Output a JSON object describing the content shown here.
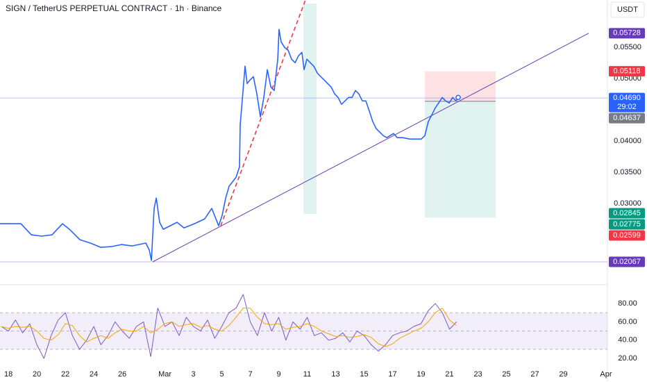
{
  "chart_data": [
    {
      "type": "line",
      "title": "SIGN / TetherUS PERPETUAL CONTRACT · 1h · Binance",
      "currency": "USDT",
      "color": "#2962ff",
      "x": [
        -0.59,
        0.88,
        1.61,
        2.34,
        3.07,
        3.8,
        4.29,
        5.02,
        5.76,
        6.49,
        7.22,
        7.95,
        8.68,
        9.66,
        9.9,
        10.05,
        10.24,
        10.39,
        10.63,
        10.88,
        11.37,
        11.85,
        12.34,
        13.07,
        13.8,
        14.29,
        14.78,
        15.02,
        15.27,
        15.51,
        16.0,
        16.24,
        16.29,
        16.49,
        16.63,
        16.78,
        16.98,
        17.22,
        17.46,
        17.71,
        17.95,
        18.2,
        18.44,
        18.68,
        18.93,
        19.02,
        19.17,
        19.41,
        19.66,
        19.9,
        20.15,
        20.39,
        20.63,
        20.78,
        20.98,
        21.22,
        21.46,
        21.71,
        21.95,
        22.2,
        22.44,
        22.68,
        22.93,
        23.17,
        23.41,
        23.66,
        23.9,
        24.15,
        24.39,
        24.63,
        24.88,
        25.12,
        25.37,
        25.61,
        25.85,
        26.1,
        26.34,
        26.59,
        26.83,
        27.07,
        27.32,
        27.71,
        28.2,
        28.68,
        29.02,
        29.27,
        29.51,
        29.76,
        30.0,
        30.24,
        30.49,
        30.73,
        30.98,
        31.22,
        31.46,
        31.61
      ],
      "values": [
        0.02678,
        0.02678,
        0.025,
        0.02478,
        0.025,
        0.02678,
        0.02589,
        0.02422,
        0.02367,
        0.023,
        0.02311,
        0.02344,
        0.02322,
        0.02367,
        0.02256,
        0.02089,
        0.02922,
        0.03089,
        0.027,
        0.02589,
        0.02644,
        0.027,
        0.02611,
        0.02678,
        0.02756,
        0.02922,
        0.02644,
        0.02811,
        0.03089,
        0.03278,
        0.03422,
        0.03589,
        0.04256,
        0.04811,
        0.052,
        0.04922,
        0.04978,
        0.05033,
        0.04756,
        0.04389,
        0.047,
        0.05144,
        0.04867,
        0.04811,
        0.05311,
        0.05789,
        0.05589,
        0.055,
        0.05456,
        0.05311,
        0.05256,
        0.05367,
        0.05422,
        0.05144,
        0.05311,
        0.05256,
        0.052,
        0.05089,
        0.05033,
        0.04978,
        0.04922,
        0.04867,
        0.04756,
        0.047,
        0.04589,
        0.04644,
        0.047,
        0.047,
        0.04811,
        0.04756,
        0.04644,
        0.04644,
        0.04478,
        0.04311,
        0.042,
        0.04144,
        0.04089,
        0.04056,
        0.04089,
        0.04122,
        0.04056,
        0.04056,
        0.04033,
        0.04033,
        0.04033,
        0.04089,
        0.04311,
        0.04422,
        0.04533,
        0.04611,
        0.047,
        0.04644,
        0.04611,
        0.047,
        0.04644,
        0.047
      ],
      "xlim": [
        -0.59,
        42.1
      ],
      "xticks": [
        {
          "value": 0,
          "label": "18"
        },
        {
          "value": 2,
          "label": "20"
        },
        {
          "value": 4,
          "label": "22"
        },
        {
          "value": 6,
          "label": "24"
        },
        {
          "value": 8,
          "label": "26"
        },
        {
          "value": 11,
          "label": "Mar"
        },
        {
          "value": 13,
          "label": "3"
        },
        {
          "value": 15,
          "label": "5"
        },
        {
          "value": 17,
          "label": "7"
        },
        {
          "value": 19,
          "label": "9"
        },
        {
          "value": 21,
          "label": "11"
        },
        {
          "value": 23,
          "label": "13"
        },
        {
          "value": 25,
          "label": "15"
        },
        {
          "value": 27,
          "label": "17"
        },
        {
          "value": 29,
          "label": "19"
        },
        {
          "value": 31,
          "label": "21"
        },
        {
          "value": 33,
          "label": "23"
        },
        {
          "value": 35,
          "label": "25"
        },
        {
          "value": 37,
          "label": "27"
        },
        {
          "value": 39,
          "label": "29"
        },
        {
          "value": 42,
          "label": "Apr"
        }
      ],
      "ylim": [
        0.017,
        0.0626
      ],
      "yticks": [
        {
          "value": 0.055,
          "label": "0.05500"
        },
        {
          "value": 0.05,
          "label": "0.05000"
        },
        {
          "value": 0.04,
          "label": "0.04000"
        },
        {
          "value": 0.035,
          "label": "0.03500"
        },
        {
          "value": 0.03,
          "label": "0.03000"
        }
      ],
      "price_labels": [
        {
          "value": 0.05728,
          "label": "0.05728",
          "color": "#673ab7"
        },
        {
          "value": 0.05118,
          "label": "0.05118",
          "color": "#f23645"
        },
        {
          "value": 0.0469,
          "label": "0.04690",
          "color": "#2962ff",
          "line": true
        },
        {
          "value": 0.04637,
          "label": "0.04637",
          "color": "#787b86"
        },
        {
          "value": 0.02845,
          "label": "0.02845",
          "color": "#089981"
        },
        {
          "value": 0.02775,
          "label": "0.02775",
          "color": "#089981"
        },
        {
          "value": 0.02599,
          "label": "0.02599",
          "color": "#f23645"
        },
        {
          "value": 0.02067,
          "label": "0.02067",
          "color": "#673ab7",
          "line": true
        }
      ],
      "countdown": "29:02"
    },
    {
      "type": "line",
      "x": [
        -0.5,
        0,
        0.5,
        1,
        1.5,
        2,
        2.5,
        3,
        3.5,
        4,
        4.5,
        5,
        5.5,
        6,
        6.5,
        7,
        7.5,
        8,
        8.5,
        9,
        9.5,
        10,
        10.5,
        11,
        11.5,
        12,
        12.5,
        13,
        13.5,
        14,
        14.5,
        15,
        15.5,
        16,
        16.5,
        17,
        17.5,
        18,
        18.5,
        19,
        19.5,
        20,
        20.5,
        21,
        21.5,
        22,
        22.5,
        23,
        23.5,
        24,
        24.5,
        25,
        25.5,
        26,
        26.5,
        27,
        27.5,
        28,
        28.5,
        29,
        29.5,
        30,
        30.5,
        31,
        31.5
      ],
      "series": [
        {
          "color": "#7e57c2",
          "values": [
            55,
            50,
            62,
            48,
            58,
            35,
            20,
            45,
            62,
            70,
            45,
            30,
            40,
            55,
            35,
            45,
            60,
            50,
            42,
            55,
            60,
            22,
            75,
            55,
            60,
            45,
            65,
            55,
            50,
            62,
            42,
            55,
            70,
            75,
            90,
            60,
            45,
            70,
            50,
            65,
            40,
            60,
            52,
            65,
            45,
            48,
            40,
            42,
            48,
            38,
            50,
            45,
            35,
            28,
            35,
            45,
            48,
            50,
            55,
            58,
            72,
            80,
            70,
            52,
            60
          ]
        },
        {
          "color": "#f7a600",
          "values": [
            55,
            53,
            55,
            54,
            55,
            50,
            42,
            40,
            46,
            58,
            56,
            45,
            38,
            42,
            45,
            42,
            48,
            52,
            50,
            50,
            55,
            48,
            52,
            58,
            60,
            55,
            57,
            58,
            54,
            56,
            52,
            50,
            56,
            65,
            75,
            75,
            65,
            58,
            57,
            58,
            52,
            54,
            55,
            58,
            55,
            50,
            47,
            44,
            45,
            43,
            44,
            46,
            43,
            36,
            33,
            36,
            42,
            46,
            50,
            53,
            60,
            70,
            75,
            62,
            56
          ]
        }
      ],
      "ylim": [
        11,
        99
      ],
      "yticks": [
        {
          "value": 80,
          "label": "80.00"
        },
        {
          "value": 60,
          "label": "60.00"
        },
        {
          "value": 40,
          "label": "40.00"
        },
        {
          "value": 20,
          "label": "20.00"
        }
      ],
      "band": [
        30,
        70
      ],
      "midline": 50
    }
  ]
}
